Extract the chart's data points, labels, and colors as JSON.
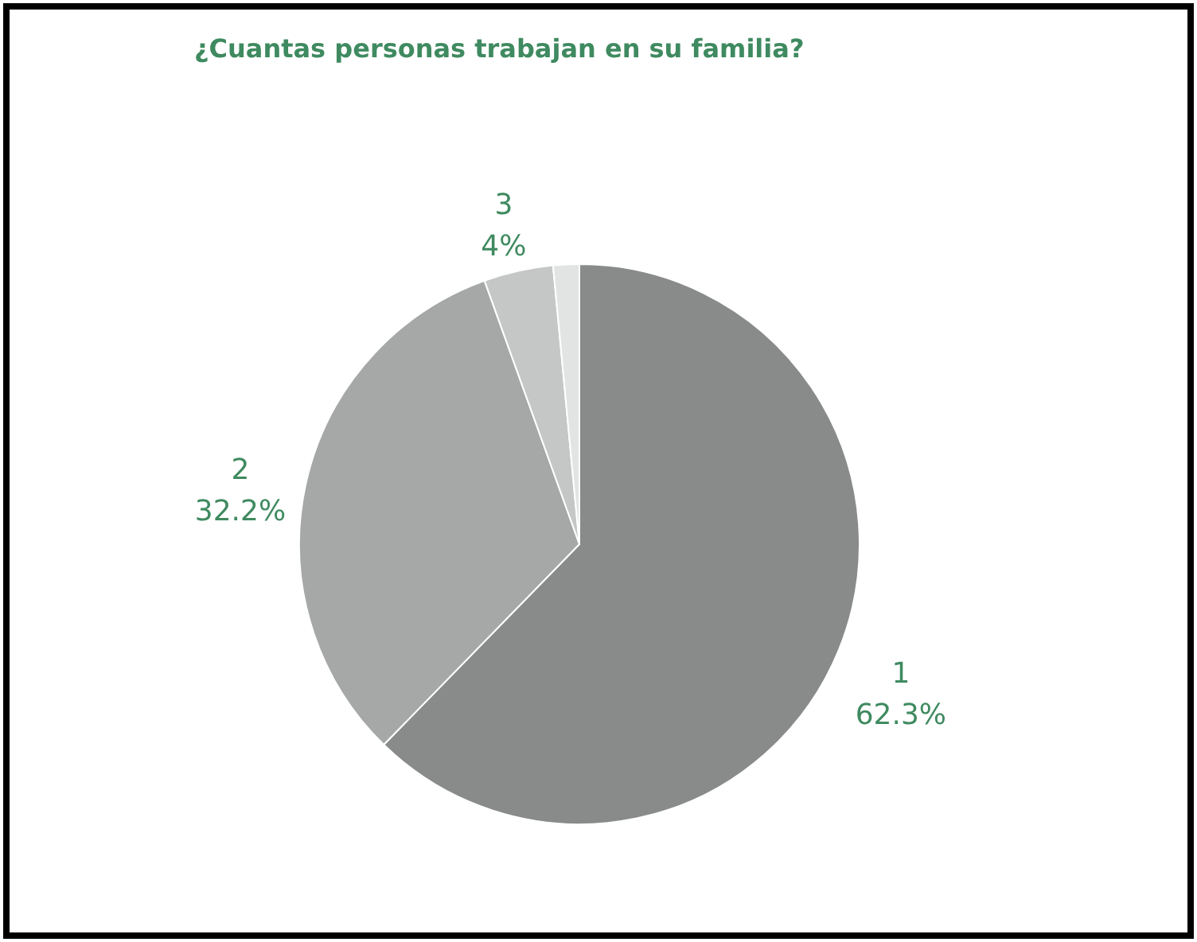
{
  "chart_data": {
    "type": "pie",
    "title": "¿Cuantas personas trabajan en su familia?",
    "categories": [
      "1",
      "2",
      "3",
      null
    ],
    "values": [
      62.3,
      32.2,
      4,
      1.5
    ],
    "value_labels": [
      "62.3%",
      "32.2%",
      "4%",
      null
    ],
    "colors": [
      "#898b8b",
      "#a6a8a8",
      "#c5c7c7",
      "#e2e3e3"
    ]
  }
}
